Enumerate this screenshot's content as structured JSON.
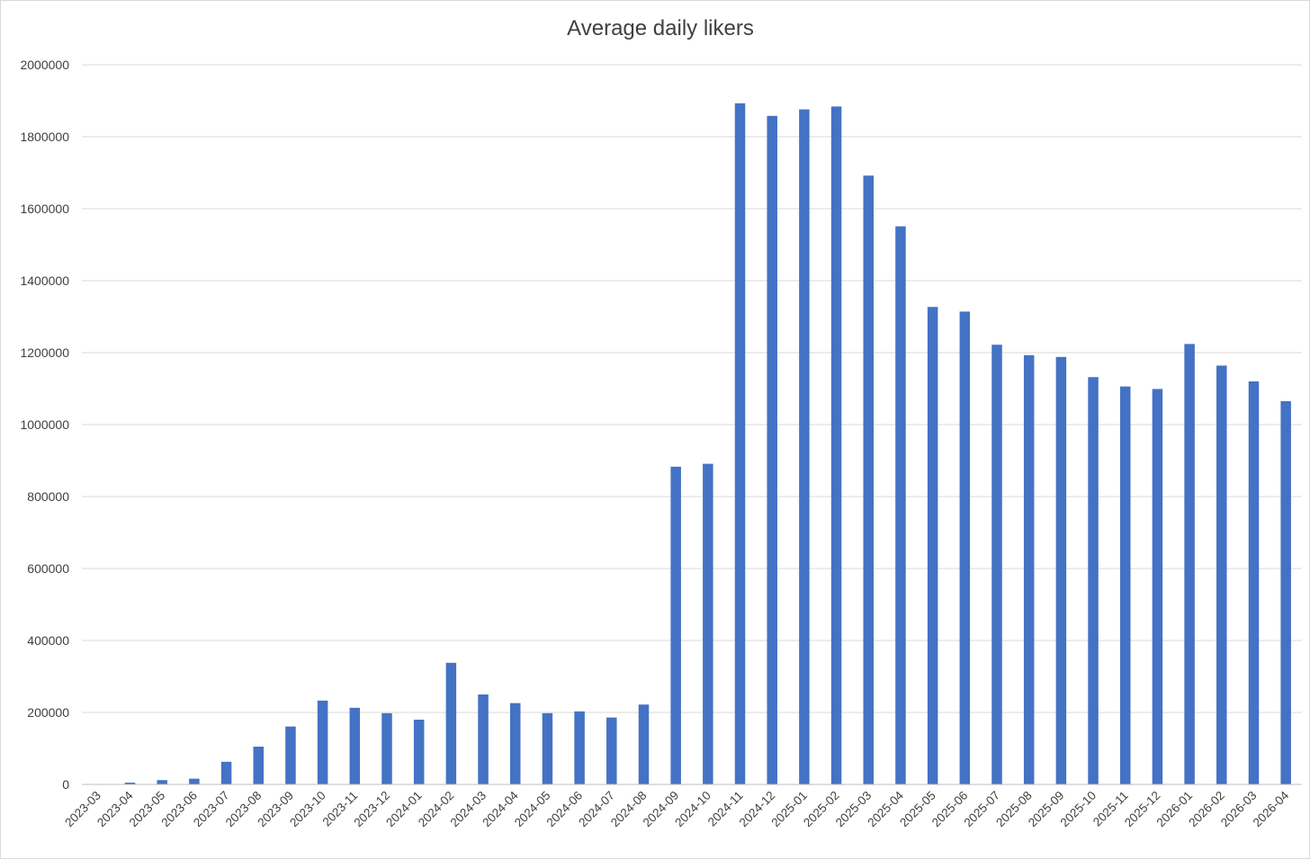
{
  "chart_data": {
    "type": "bar",
    "title": "Average daily likers",
    "xlabel": "",
    "ylabel": "",
    "ylim": [
      0,
      2000000
    ],
    "yticks": [
      "0",
      "200000",
      "400000",
      "600000",
      "800000",
      "1000000",
      "1200000",
      "1400000",
      "1600000",
      "1800000",
      "2000000"
    ],
    "grid": true,
    "legend": "none",
    "bar_color": "#4472C4",
    "categories": [
      "2023-03",
      "2023-04",
      "2023-05",
      "2023-06",
      "2023-07",
      "2023-08",
      "2023-09",
      "2023-10",
      "2023-11",
      "2023-12",
      "2024-01",
      "2024-02",
      "2024-03",
      "2024-04",
      "2024-05",
      "2024-06",
      "2024-07",
      "2024-08",
      "2024-09",
      "2024-10",
      "2024-11",
      "2024-12",
      "2025-01",
      "2025-02",
      "2025-03",
      "2025-04",
      "2025-05",
      "2025-06",
      "2025-07",
      "2025-08",
      "2025-09",
      "2025-10",
      "2025-11",
      "2025-12",
      "2026-01",
      "2026-02",
      "2026-03",
      "2026-04"
    ],
    "values": [
      0,
      5000,
      12000,
      16000,
      63000,
      105000,
      161000,
      233000,
      213000,
      198000,
      180000,
      338000,
      250000,
      226000,
      198000,
      203000,
      186000,
      222000,
      883000,
      891000,
      1893000,
      1858000,
      1876000,
      1884000,
      1692000,
      1551000,
      1327000,
      1314000,
      1222000,
      1193000,
      1188000,
      1132000,
      1106000,
      1099000,
      1224000,
      1164000,
      1120000,
      1065000
    ]
  }
}
